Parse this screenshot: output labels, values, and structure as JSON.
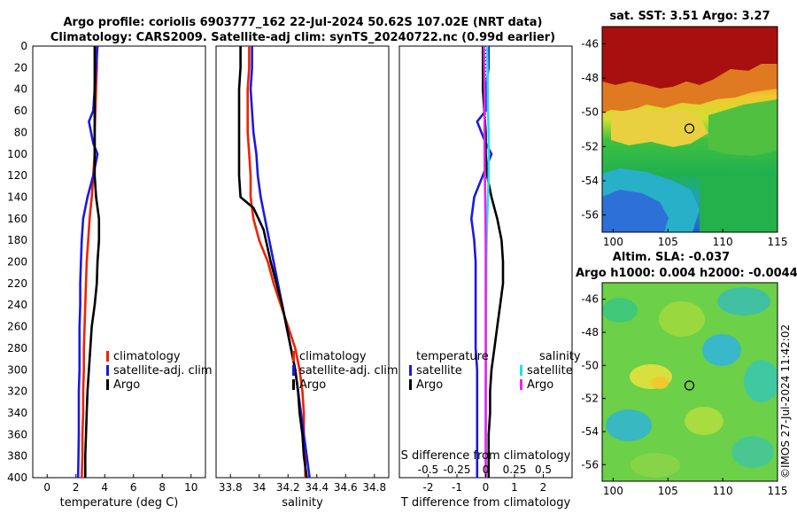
{
  "titles": {
    "line1": "Argo profile: coriolis 6903777_162 22-Jul-2024 50.62S 107.02E (NRT data)",
    "line2": "Climatology: CARS2009. Satellite-adj clim: synTS_20240722.nc (0.99d earlier)"
  },
  "colors": {
    "climatology": "#ee2200",
    "satellite_adj": "#1a1ae0",
    "argo": "#000000",
    "temp_sat_diff": "#1a1ae0",
    "sal_sat_diff": "#22e0f0",
    "sal_argo_diff": "#ee22ee"
  },
  "depth_axis": {
    "ylim": [
      0,
      400
    ],
    "ticks": [
      0,
      20,
      40,
      60,
      80,
      100,
      120,
      140,
      160,
      180,
      200,
      220,
      240,
      260,
      280,
      300,
      320,
      340,
      360,
      380,
      400
    ]
  },
  "chart_data": [
    {
      "type": "line",
      "id": "temperature",
      "xlabel": "temperature (deg C)",
      "xlim": [
        -1,
        11
      ],
      "xticks": [
        0,
        2,
        4,
        6,
        8,
        10
      ],
      "legend": [
        "climatology",
        "satellite-adj. clim",
        "Argo"
      ],
      "legend_position": "lower-right",
      "series": [
        {
          "name": "climatology",
          "color_key": "climatology",
          "x": [
            3.45,
            3.45,
            3.4,
            3.35,
            3.3,
            3.3,
            3.2,
            3.1,
            2.95,
            2.85,
            2.75,
            2.7,
            2.65,
            2.6,
            2.55,
            2.55,
            2.5,
            2.5,
            2.45,
            2.45,
            2.4
          ],
          "y": [
            0,
            20,
            40,
            60,
            80,
            100,
            120,
            140,
            160,
            180,
            200,
            220,
            240,
            260,
            280,
            300,
            320,
            340,
            360,
            380,
            400
          ]
        },
        {
          "name": "satellite-adj. clim",
          "color_key": "satellite_adj",
          "x": [
            3.5,
            3.4,
            3.3,
            3.2,
            2.9,
            3.2,
            3.5,
            3.2,
            2.8,
            2.5,
            2.4,
            2.35,
            2.3,
            2.3,
            2.25,
            2.25,
            2.25,
            2.2,
            2.2,
            2.2,
            2.15
          ],
          "y": [
            0,
            20,
            40,
            60,
            70,
            90,
            100,
            120,
            140,
            160,
            180,
            200,
            220,
            240,
            260,
            280,
            300,
            320,
            340,
            360,
            400
          ]
        },
        {
          "name": "Argo",
          "color_key": "argo",
          "x": [
            3.3,
            3.3,
            3.3,
            3.3,
            3.3,
            3.3,
            3.3,
            3.4,
            3.6,
            3.6,
            3.5,
            3.45,
            3.3,
            3.1,
            3.0,
            2.9,
            2.8,
            2.75,
            2.7,
            2.65,
            2.65
          ],
          "y": [
            0,
            20,
            40,
            60,
            80,
            100,
            120,
            140,
            160,
            180,
            200,
            220,
            240,
            260,
            280,
            300,
            320,
            340,
            360,
            380,
            400
          ]
        }
      ]
    },
    {
      "type": "line",
      "id": "salinity",
      "xlabel": "salinity",
      "xlim": [
        33.7,
        34.9
      ],
      "xticks": [
        33.8,
        34,
        34.2,
        34.4,
        34.6,
        34.8
      ],
      "legend": [
        "climatology",
        "satellite-adj. clim",
        "Argo"
      ],
      "legend_position": "lower-right",
      "series": [
        {
          "name": "climatology",
          "color_key": "climatology",
          "x": [
            33.93,
            33.93,
            33.92,
            33.92,
            33.92,
            33.93,
            33.94,
            33.94,
            33.96,
            34.0,
            34.06,
            34.1,
            34.15,
            34.2,
            34.25,
            34.28,
            34.3,
            34.31,
            34.31,
            34.32,
            34.32
          ],
          "y": [
            0,
            20,
            40,
            60,
            80,
            100,
            120,
            140,
            160,
            180,
            200,
            220,
            240,
            260,
            280,
            300,
            320,
            340,
            360,
            380,
            400
          ]
        },
        {
          "name": "satellite-adj. clim",
          "color_key": "satellite_adj",
          "x": [
            33.95,
            33.95,
            33.94,
            33.95,
            33.96,
            33.98,
            33.99,
            34.01,
            34.04,
            34.07,
            34.1,
            34.13,
            34.16,
            34.19,
            34.22,
            34.25,
            34.27,
            34.29,
            34.31,
            34.33,
            34.35
          ],
          "y": [
            0,
            20,
            40,
            60,
            80,
            100,
            120,
            140,
            160,
            180,
            200,
            220,
            240,
            260,
            280,
            300,
            320,
            340,
            360,
            380,
            400
          ]
        },
        {
          "name": "Argo",
          "color_key": "argo",
          "x": [
            33.87,
            33.87,
            33.86,
            33.86,
            33.86,
            33.86,
            33.86,
            33.87,
            33.96,
            34.03,
            34.08,
            34.12,
            34.16,
            34.19,
            34.22,
            34.25,
            34.27,
            34.28,
            34.3,
            34.31,
            34.33
          ],
          "y": [
            0,
            20,
            40,
            60,
            80,
            100,
            120,
            140,
            150,
            170,
            200,
            220,
            240,
            260,
            280,
            300,
            320,
            340,
            360,
            380,
            400
          ]
        }
      ]
    },
    {
      "type": "line",
      "id": "differences",
      "xlabel": "T difference from climatology",
      "xlim": [
        -3,
        3
      ],
      "xticks": [
        -2,
        -1,
        0,
        1,
        2
      ],
      "top_label": "S difference from climatology",
      "top_ticks": [
        "-0.5",
        "-0.25",
        "0",
        "0.25",
        "0.5"
      ],
      "legend_left_header": "temperature",
      "legend_right_header": "salinity",
      "legend_left": [
        "satellite",
        "Argo"
      ],
      "legend_right": [
        "satellite",
        "Argo"
      ],
      "series": [
        {
          "name": "temperature satellite",
          "color_key": "temp_sat_diff",
          "x": [
            0.1,
            0.1,
            0.0,
            0.0,
            -0.3,
            0.0,
            0.2,
            -0.4,
            -0.5,
            -0.4,
            -0.35,
            -0.35,
            -0.35,
            -0.35,
            -0.35,
            -0.3,
            -0.3,
            -0.3,
            -0.3,
            -0.3,
            -0.3
          ],
          "y": [
            0,
            20,
            40,
            60,
            70,
            90,
            100,
            140,
            160,
            180,
            200,
            220,
            240,
            260,
            280,
            300,
            320,
            340,
            360,
            380,
            400
          ]
        },
        {
          "name": "temperature Argo",
          "color_key": "argo",
          "x": [
            -0.1,
            -0.1,
            -0.1,
            -0.05,
            0.0,
            0.0,
            0.05,
            0.2,
            0.4,
            0.55,
            0.6,
            0.6,
            0.5,
            0.4,
            0.3,
            0.2,
            0.15,
            0.15,
            0.1,
            0.1,
            0.1
          ],
          "y": [
            0,
            20,
            40,
            60,
            80,
            100,
            120,
            140,
            160,
            180,
            200,
            220,
            240,
            260,
            280,
            300,
            320,
            340,
            360,
            380,
            400
          ]
        },
        {
          "name": "salinity satellite",
          "color_key": "sal_sat_diff",
          "x": [
            0.05,
            0.06,
            0.07,
            0.08,
            0.1,
            0.1,
            0.1,
            0.08,
            0.05,
            0.03,
            0.02,
            0.02,
            0.01,
            0.01,
            0.01,
            0.01,
            0.0,
            0.0,
            0.0,
            0.0,
            0.0
          ],
          "y": [
            0,
            20,
            40,
            60,
            80,
            100,
            120,
            140,
            160,
            180,
            200,
            220,
            240,
            260,
            280,
            300,
            320,
            340,
            360,
            380,
            400
          ]
        },
        {
          "name": "salinity Argo",
          "color_key": "sal_argo_diff",
          "x": [
            -0.06,
            -0.05,
            -0.04,
            -0.04,
            -0.04,
            -0.04,
            -0.03,
            -0.02,
            -0.01,
            0.0,
            0.0,
            0.0,
            0.0,
            0.0,
            0.0,
            0.0,
            0.0,
            0.0,
            0.0,
            0.0,
            0.0
          ],
          "y": [
            0,
            20,
            40,
            60,
            80,
            100,
            120,
            140,
            160,
            180,
            200,
            220,
            240,
            260,
            280,
            300,
            320,
            340,
            360,
            380,
            400
          ]
        }
      ]
    },
    {
      "type": "heatmap",
      "id": "sst-map",
      "title": "sat. SST: 3.51 Argo: 3.27",
      "xlim": [
        99,
        115
      ],
      "ylim": [
        -57,
        -45
      ],
      "xticks": [
        100,
        105,
        110,
        115
      ],
      "yticks": [
        -46,
        -48,
        -50,
        -52,
        -54,
        -56
      ],
      "marker": {
        "lon": 107.02,
        "lat": -50.62
      }
    },
    {
      "type": "heatmap",
      "id": "sla-map",
      "title_line1": "Altim. SLA: -0.037",
      "title_line2": "Argo h1000: 0.004 h2000: -0.0044",
      "xlim": [
        99,
        115
      ],
      "ylim": [
        -57,
        -45
      ],
      "xticks": [
        100,
        105,
        110,
        115
      ],
      "yticks": [
        -46,
        -48,
        -50,
        -52,
        -54,
        -56
      ],
      "marker": {
        "lon": 107.02,
        "lat": -50.62
      }
    }
  ],
  "credit": "©IMOS 27-Jul-2024 11:42:02"
}
